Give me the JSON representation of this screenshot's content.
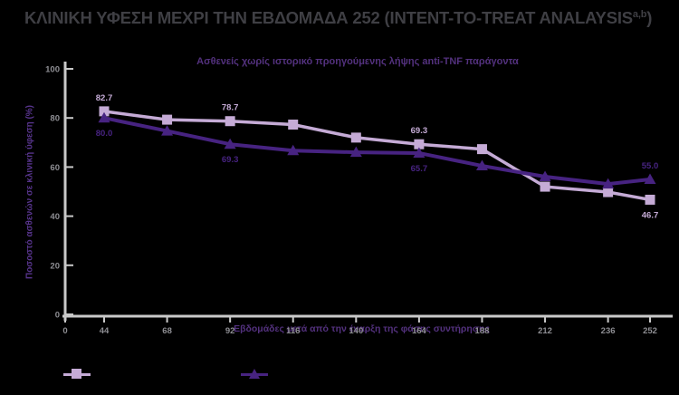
{
  "page": {
    "background": "#000000"
  },
  "title": {
    "main": "ΚΛΙΝΙΚΗ ΥΦΕΣΗ ΜΕΧΡΙ ΤΗΝ ΕΒΔΟΜΑΔΑ 252 (INTENT-TO-TREAT ANALAYSIS",
    "sup": "a,b",
    "close": ")",
    "color": "#3f3f44"
  },
  "chart_data": {
    "type": "line",
    "subtitle": "Ασθενείς χωρίς ιστορικό προηγούμενης λήψης anti-TNF παράγοντα",
    "xlabel": "Εβδομάδες μετά από την έναρξη της φάσης συντήρησης",
    "ylabel": "Ποσοστό ασθενών σε κλινική ύφεση (%)",
    "x_ticks": [
      0,
      44,
      68,
      92,
      116,
      140,
      164,
      188,
      212,
      236,
      252
    ],
    "ylim": [
      0,
      100
    ],
    "y_ticks": [
      0,
      20,
      40,
      60,
      80,
      100
    ],
    "grid": false,
    "legend_position": "bottom-left",
    "colors": {
      "axis": "#c9c9c9",
      "tick_text": "#8e8e93",
      "accent_purple": "#53317e"
    },
    "series": [
      {
        "name": "",
        "marker": "square",
        "color": "#c5abd6",
        "weeks": [
          44,
          68,
          92,
          116,
          140,
          164,
          188,
          212,
          236,
          252
        ],
        "values": [
          82.7,
          79.3,
          78.7,
          77.3,
          72.0,
          69.3,
          67.3,
          52.0,
          49.8,
          46.7
        ],
        "point_labels": [
          {
            "week": 44,
            "text": "82.7",
            "pos": "above"
          },
          {
            "week": 92,
            "text": "78.7",
            "pos": "above"
          },
          {
            "week": 164,
            "text": "69.3",
            "pos": "above"
          },
          {
            "week": 252,
            "text": "46.7",
            "pos": "below"
          }
        ]
      },
      {
        "name": "",
        "marker": "triangle",
        "color": "#472381",
        "weeks": [
          44,
          68,
          92,
          116,
          140,
          164,
          188,
          212,
          236,
          252
        ],
        "values": [
          80.0,
          74.7,
          69.3,
          66.7,
          66.0,
          65.7,
          60.5,
          56.1,
          53.1,
          55.0
        ],
        "point_labels": [
          {
            "week": 44,
            "text": "80.0",
            "pos": "below"
          },
          {
            "week": 92,
            "text": "69.3",
            "pos": "below"
          },
          {
            "week": 164,
            "text": "65.7",
            "pos": "below"
          },
          {
            "week": 252,
            "text": "55.0",
            "pos": "above"
          }
        ]
      }
    ]
  }
}
